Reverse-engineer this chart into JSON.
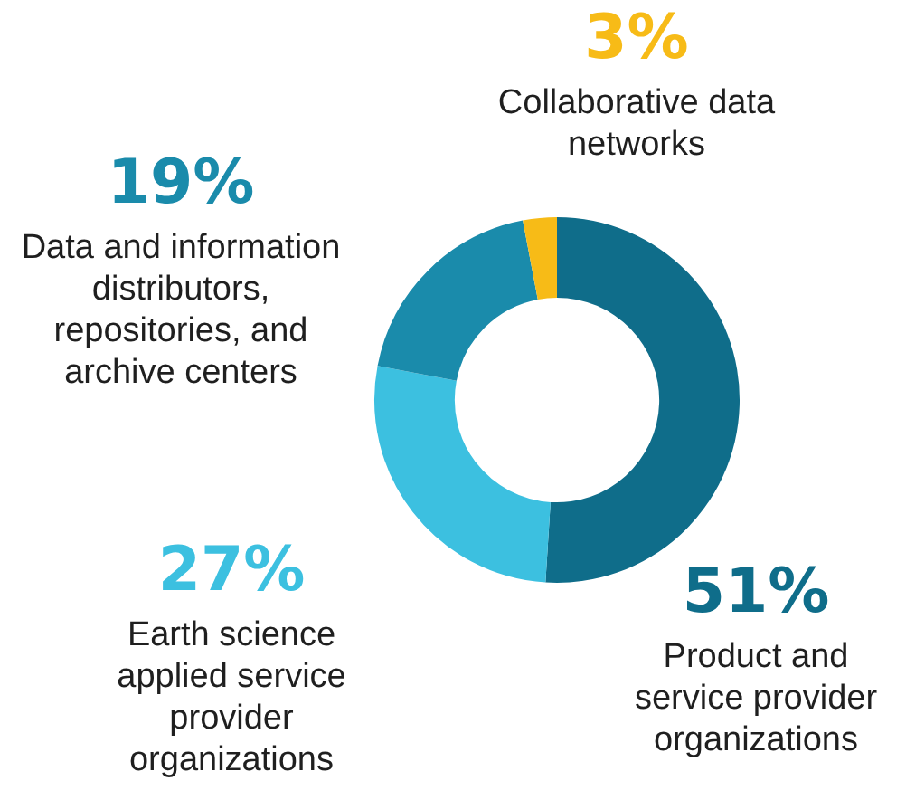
{
  "chart_data": {
    "type": "donut",
    "categories": [
      "Product and service provider organizations",
      "Earth science applied service provider organizations",
      "Data and information distributors, repositories, and archive centers",
      "Collaborative data networks"
    ],
    "values": [
      51,
      27,
      19,
      3
    ],
    "colors": [
      "#0f6d8a",
      "#3cc0e0",
      "#1a8bab",
      "#f7bb17"
    ],
    "value_labels": [
      "51%",
      "27%",
      "19%",
      "3%"
    ],
    "legend": false
  }
}
